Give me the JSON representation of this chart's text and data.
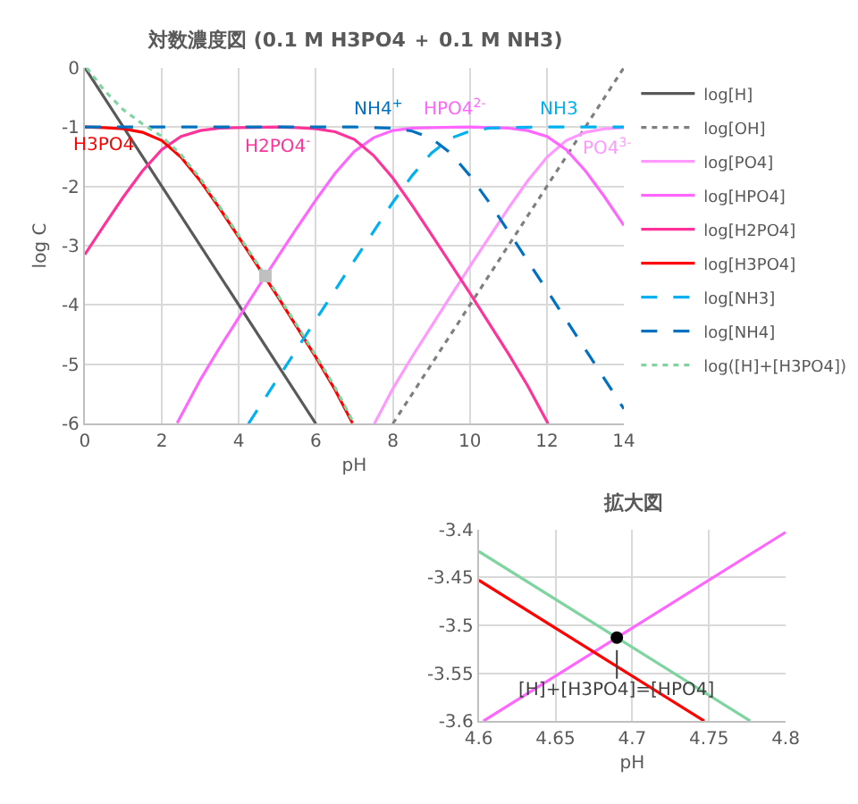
{
  "chart_data": [
    {
      "type": "line",
      "title": "対数濃度図 (0.1 M H3PO4 ＋ 0.1 M NH3)",
      "xlabel": "pH",
      "ylabel": "log C",
      "xlim": [
        0,
        14
      ],
      "xticks": [
        0,
        2,
        4,
        6,
        8,
        10,
        12,
        14
      ],
      "ylim": [
        -6,
        0
      ],
      "yticks": [
        0,
        -1,
        -2,
        -3,
        -4,
        -5,
        -6
      ],
      "grid": true,
      "legend": "right",
      "marker": "none",
      "series": [
        {
          "name": "log[H]",
          "color": "#595959",
          "line_style": "solid",
          "x": [
            0,
            6
          ],
          "values": [
            0,
            -6
          ]
        },
        {
          "name": "log[OH]",
          "color": "#7f7f7f",
          "line_style": "dotted",
          "x": [
            8,
            14
          ],
          "values": [
            -6,
            0
          ]
        },
        {
          "name": "log[PO4]",
          "color": "#ff99ff",
          "line_style": "solid",
          "x": [
            7.52,
            8,
            8.5,
            9,
            9.5,
            10,
            10.5,
            11,
            11.5,
            12,
            12.5,
            13,
            13.5,
            14
          ],
          "values": [
            -6.0,
            -5.41,
            -4.87,
            -4.36,
            -3.85,
            -3.35,
            -2.86,
            -2.37,
            -1.91,
            -1.51,
            -1.23,
            -1.09,
            -1.03,
            -1.01
          ]
        },
        {
          "name": "log[HPO4]",
          "color": "#ff66ff",
          "line_style": "solid",
          "x": [
            2.4,
            3,
            3.5,
            4,
            4.5,
            5,
            5.5,
            6,
            6.5,
            7,
            7.5,
            8,
            8.5,
            9,
            10,
            10.5,
            11,
            11.5,
            12,
            12.5,
            13,
            13.5,
            14
          ],
          "values": [
            -5.99,
            -5.26,
            -4.72,
            -4.21,
            -3.7,
            -3.2,
            -2.71,
            -2.23,
            -1.78,
            -1.41,
            -1.18,
            -1.06,
            -1.02,
            -1.01,
            -1.0,
            -1.01,
            -1.02,
            -1.06,
            -1.16,
            -1.38,
            -1.74,
            -2.18,
            -2.66
          ]
        },
        {
          "name": "log[H2PO4]",
          "color": "#ff3399",
          "line_style": "solid",
          "x": [
            0,
            0.5,
            1,
            1.5,
            2,
            2.5,
            3,
            3.5,
            4,
            5,
            5.5,
            6,
            6.5,
            7,
            7.5,
            8,
            8.5,
            9,
            10,
            11,
            11.5,
            12,
            12.03
          ],
          "values": [
            -3.15,
            -2.66,
            -2.18,
            -1.74,
            -1.38,
            -1.16,
            -1.06,
            -1.02,
            -1.01,
            -1.0,
            -1.01,
            -1.03,
            -1.08,
            -1.21,
            -1.48,
            -1.86,
            -2.32,
            -2.81,
            -3.8,
            -4.82,
            -5.36,
            -5.96,
            -6.0
          ]
        },
        {
          "name": "log[H3PO4]",
          "color": "#ff0000",
          "line_style": "solid",
          "x": [
            0,
            0.5,
            1,
            1.5,
            2,
            2.5,
            3,
            3.5,
            4,
            5,
            6,
            6.5,
            6.95
          ],
          "values": [
            -1.0,
            -1.01,
            -1.03,
            -1.09,
            -1.23,
            -1.51,
            -1.91,
            -2.37,
            -2.86,
            -3.85,
            -4.88,
            -5.43,
            -5.99
          ]
        },
        {
          "name": "log[NH3]",
          "color": "#00b0f0",
          "line_style": "dashed",
          "x": [
            4.25,
            5,
            6,
            7,
            7.5,
            8,
            8.5,
            9,
            9.5,
            10,
            10.5,
            11,
            12,
            14
          ],
          "values": [
            -6.0,
            -5.25,
            -4.25,
            -3.25,
            -2.76,
            -2.27,
            -1.82,
            -1.44,
            -1.19,
            -1.07,
            -1.02,
            -1.01,
            -1.0,
            -1.0
          ]
        },
        {
          "name": "log[NH4]",
          "color": "#0070c0",
          "line_style": "dashed",
          "x": [
            0,
            6,
            7,
            7.5,
            8,
            8.5,
            9,
            9.5,
            10,
            10.5,
            11,
            12,
            13,
            14
          ],
          "values": [
            -1.0,
            -1.0,
            -1.0,
            -1.01,
            -1.02,
            -1.07,
            -1.19,
            -1.44,
            -1.82,
            -2.27,
            -2.76,
            -3.75,
            -4.75,
            -5.75
          ]
        },
        {
          "name": "log([H]+[H3PO4])",
          "color": "#7fd4a0",
          "line_style": "dotted",
          "x": [
            0.05,
            0.5,
            1,
            1.5,
            2,
            2.5,
            3,
            3.5,
            4,
            5,
            6,
            6.5,
            6.95
          ],
          "values": [
            0,
            -0.38,
            -0.71,
            -0.95,
            -1.16,
            -1.47,
            -1.87,
            -2.34,
            -2.83,
            -3.82,
            -4.85,
            -5.39,
            -5.95
          ]
        },
        {
          "type": "scatter",
          "color": "#c0c0c0",
          "marker": "square",
          "x": [
            4.69
          ],
          "values": [
            -3.51
          ]
        }
      ],
      "annotations": [
        {
          "text": "H3PO4",
          "x": 0.5,
          "y": -1.02
        },
        {
          "text": "H2PO4$^{-}$",
          "x": 5.0,
          "y": -1.01
        },
        {
          "text": "NH4$^{+}$",
          "x": 7.6,
          "y": -1.01
        },
        {
          "text": "HPO4$^{2-}$",
          "x": 9.6,
          "y": -1.0
        },
        {
          "text": "NH3",
          "x": 12.3,
          "y": -1.0
        },
        {
          "text": "PO4$^{3-}$",
          "x": 13.6,
          "y": -1.04
        }
      ]
    },
    {
      "type": "line",
      "title": "拡大図",
      "xlabel": "pH",
      "xlim": [
        4.6,
        4.8
      ],
      "xticks": [
        4.6,
        4.65,
        4.7,
        4.75,
        4.8
      ],
      "ylim": [
        -3.6,
        -3.4
      ],
      "yticks": [
        -3.4,
        -3.45,
        -3.5,
        -3.55,
        -3.6
      ],
      "grid": true,
      "marker": "none",
      "series": [
        {
          "color": "#ff66ff",
          "line_style": "solid",
          "x": [
            4.603,
            4.8
          ],
          "values": [
            -3.6,
            -3.403
          ]
        },
        {
          "color": "#ff0000",
          "line_style": "solid",
          "x": [
            4.6,
            4.747
          ],
          "values": [
            -3.453,
            -3.6
          ]
        },
        {
          "color": "#7fd4a0",
          "line_style": "solid",
          "x": [
            4.6,
            4.777
          ],
          "values": [
            -3.423,
            -3.6
          ]
        },
        {
          "type": "scatter",
          "color": "#000000",
          "marker": "circle",
          "x": [
            4.69
          ],
          "values": [
            -3.513
          ]
        }
      ],
      "annotations": [
        {
          "text": "[H]+[H3PO4]=[HPO4]",
          "x": 4.69,
          "y": -3.513
        }
      ]
    }
  ]
}
